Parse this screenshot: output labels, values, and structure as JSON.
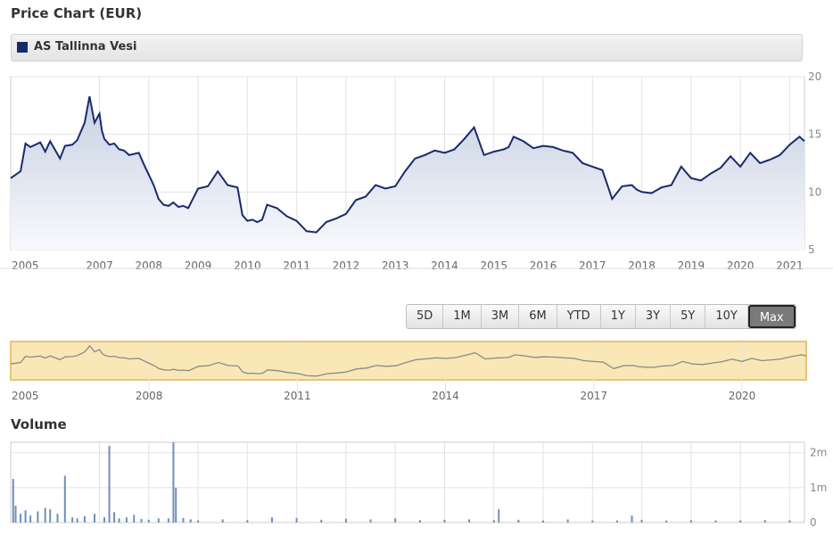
{
  "header": {
    "title": "Price Chart (EUR)"
  },
  "legend": {
    "series_name": "AS Tallinna Vesi",
    "color": "#1a2a6c"
  },
  "range_selector": {
    "buttons": [
      "5D",
      "1M",
      "3M",
      "6M",
      "YTD",
      "1Y",
      "3Y",
      "5Y",
      "10Y",
      "Max"
    ],
    "selected": "Max"
  },
  "volume_section": {
    "title": "Volume"
  },
  "chart_data": [
    {
      "type": "area",
      "title": "Price Chart (EUR)",
      "x_labels": [
        "2005",
        "2007",
        "2008",
        "2009",
        "2010",
        "2011",
        "2012",
        "2013",
        "2014",
        "2015",
        "2016",
        "2017",
        "2018",
        "2019",
        "2020",
        "2021"
      ],
      "x_label_years": [
        2005,
        2007,
        2008,
        2009,
        2010,
        2011,
        2012,
        2013,
        2014,
        2015,
        2016,
        2017,
        2018,
        2019,
        2020,
        2021
      ],
      "x_range": [
        2005.2,
        2021.3
      ],
      "y_ticks": [
        5,
        10,
        15,
        20
      ],
      "ylim": [
        5,
        20
      ],
      "grid": true,
      "series": [
        {
          "name": "AS Tallinna Vesi",
          "x": [
            2005.2,
            2005.4,
            2005.5,
            2005.6,
            2005.8,
            2005.9,
            2006.0,
            2006.2,
            2006.3,
            2006.45,
            2006.55,
            2006.7,
            2006.8,
            2006.9,
            2007.0,
            2007.05,
            2007.1,
            2007.2,
            2007.3,
            2007.4,
            2007.5,
            2007.6,
            2007.8,
            2007.9,
            2008.0,
            2008.1,
            2008.2,
            2008.3,
            2008.4,
            2008.5,
            2008.6,
            2008.7,
            2008.8,
            2009.0,
            2009.2,
            2009.4,
            2009.6,
            2009.8,
            2009.9,
            2010.0,
            2010.1,
            2010.2,
            2010.3,
            2010.4,
            2010.6,
            2010.8,
            2011.0,
            2011.2,
            2011.4,
            2011.6,
            2011.8,
            2012.0,
            2012.2,
            2012.4,
            2012.6,
            2012.8,
            2013.0,
            2013.2,
            2013.4,
            2013.6,
            2013.8,
            2014.0,
            2014.2,
            2014.4,
            2014.6,
            2014.8,
            2015.0,
            2015.1,
            2015.2,
            2015.3,
            2015.4,
            2015.6,
            2015.8,
            2016.0,
            2016.2,
            2016.4,
            2016.6,
            2016.8,
            2017.0,
            2017.2,
            2017.4,
            2017.6,
            2017.8,
            2017.9,
            2017.95,
            2018.0,
            2018.2,
            2018.4,
            2018.6,
            2018.8,
            2019.0,
            2019.2,
            2019.4,
            2019.6,
            2019.8,
            2020.0,
            2020.2,
            2020.4,
            2020.6,
            2020.8,
            2021.0,
            2021.2,
            2021.3
          ],
          "y": [
            11.2,
            11.8,
            14.2,
            13.9,
            14.3,
            13.5,
            14.4,
            12.9,
            14.0,
            14.1,
            14.5,
            16.0,
            18.3,
            16.0,
            16.8,
            15.3,
            14.6,
            14.1,
            14.2,
            13.7,
            13.6,
            13.2,
            13.4,
            12.4,
            11.5,
            10.6,
            9.4,
            8.9,
            8.8,
            9.1,
            8.7,
            8.8,
            8.6,
            10.3,
            10.5,
            11.8,
            10.6,
            10.4,
            8.0,
            7.5,
            7.6,
            7.4,
            7.6,
            8.9,
            8.6,
            7.9,
            7.5,
            6.6,
            6.5,
            7.4,
            7.7,
            8.1,
            9.3,
            9.6,
            10.6,
            10.3,
            10.5,
            11.8,
            12.9,
            13.2,
            13.6,
            13.4,
            13.7,
            14.6,
            15.6,
            13.2,
            13.5,
            13.6,
            13.7,
            13.9,
            14.8,
            14.4,
            13.8,
            14.0,
            13.9,
            13.6,
            13.4,
            12.5,
            12.2,
            11.9,
            9.4,
            10.5,
            10.6,
            10.2,
            10.1,
            10.0,
            9.9,
            10.4,
            10.6,
            12.2,
            11.2,
            11.0,
            11.6,
            12.1,
            13.1,
            12.2,
            13.4,
            12.5,
            12.8,
            13.2,
            14.1,
            14.8,
            14.4
          ],
          "color": "#1a2a6c"
        }
      ]
    },
    {
      "type": "area",
      "title": "",
      "x_labels": [
        "2005",
        "2008",
        "2011",
        "2014",
        "2017",
        "2020"
      ],
      "x_label_years": [
        2005,
        2008,
        2011,
        2014,
        2017,
        2020
      ],
      "x_range": [
        2005.2,
        2021.3
      ],
      "highlight_color": "#f9e7b6"
    },
    {
      "type": "bar",
      "title": "Volume",
      "y_ticks": [
        "0",
        "1m",
        "2m"
      ],
      "y_tick_values": [
        0,
        1000000,
        2000000
      ],
      "ylim": [
        0,
        2300000
      ],
      "x_range": [
        2005.2,
        2021.3
      ],
      "bars_x": [
        2005.25,
        2005.3,
        2005.4,
        2005.5,
        2005.6,
        2005.75,
        2005.9,
        2006.0,
        2006.15,
        2006.3,
        2006.45,
        2006.55,
        2006.7,
        2006.9,
        2007.1,
        2007.2,
        2007.3,
        2007.4,
        2007.55,
        2007.7,
        2007.85,
        2008.0,
        2008.2,
        2008.4,
        2008.5,
        2008.55,
        2008.7,
        2008.85,
        2009.0,
        2009.5,
        2010.0,
        2010.5,
        2011.0,
        2011.5,
        2012.0,
        2012.5,
        2013.0,
        2013.5,
        2014.0,
        2014.5,
        2015.0,
        2015.1,
        2015.5,
        2016.0,
        2016.5,
        2017.0,
        2017.5,
        2017.8,
        2018.0,
        2018.5,
        2019.0,
        2019.5,
        2020.0,
        2020.5,
        2021.0
      ],
      "values": [
        1250000,
        480000,
        250000,
        350000,
        200000,
        320000,
        420000,
        380000,
        250000,
        1340000,
        150000,
        120000,
        180000,
        250000,
        150000,
        2200000,
        300000,
        120000,
        150000,
        220000,
        100000,
        80000,
        120000,
        120000,
        2300000,
        1000000,
        130000,
        90000,
        60000,
        90000,
        70000,
        150000,
        130000,
        80000,
        110000,
        90000,
        120000,
        70000,
        80000,
        90000,
        70000,
        380000,
        80000,
        60000,
        90000,
        60000,
        60000,
        200000,
        80000,
        60000,
        70000,
        60000,
        60000,
        70000,
        60000
      ],
      "color": "#6f8fb8"
    }
  ]
}
